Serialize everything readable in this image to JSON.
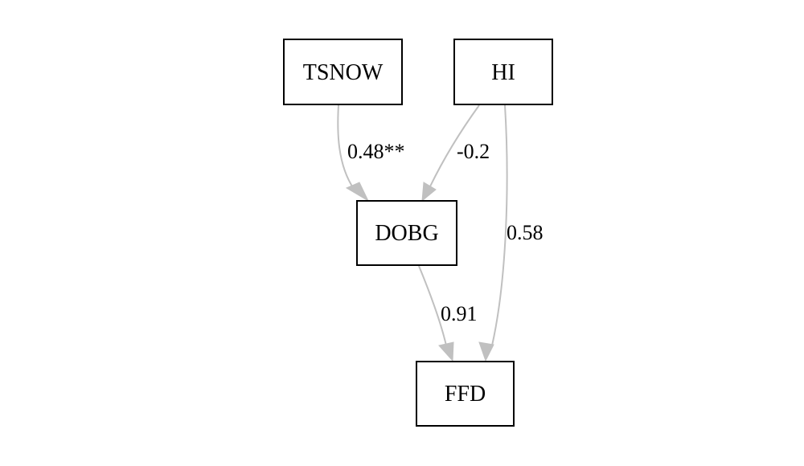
{
  "nodes": {
    "tsnow": "TSNOW",
    "hi": "HI",
    "dobg": "DOBG",
    "ffd": "FFD"
  },
  "edges": {
    "tsnow_dobg": "0.48**",
    "hi_dobg": "-0.2",
    "hi_ffd": "0.58",
    "dobg_ffd": "0.91"
  },
  "colors": {
    "edge": "#c0c0c0",
    "node_border": "#000000",
    "background": "#ffffff"
  }
}
